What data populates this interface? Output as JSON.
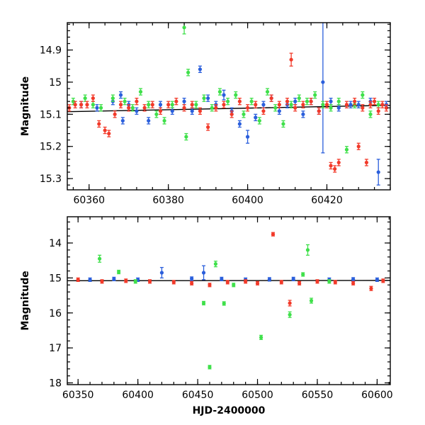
{
  "chart_data": [
    {
      "type": "scatter",
      "title": "",
      "xlabel": "",
      "ylabel": "Magnitude",
      "xlim": [
        60354.5,
        60436
      ],
      "ylim": [
        15.335,
        14.815
      ],
      "y_inverted": true,
      "x_ticks": [
        60360,
        60380,
        60400,
        60420
      ],
      "x_tick_labels": [
        "60360",
        "60380",
        "60400",
        "60420"
      ],
      "y_ticks": [
        14.9,
        15.0,
        15.1,
        15.2,
        15.3
      ],
      "y_tick_labels": [
        "14.9",
        "15",
        "15.1",
        "15.2",
        "15.3"
      ],
      "grid": false,
      "legend": "none",
      "trend_line": {
        "x": [
          60354.5,
          60436
        ],
        "y": [
          15.092,
          15.072
        ],
        "color": "#000000"
      },
      "series": [
        {
          "color": "#2b5fdc",
          "points": [
            [
              60358,
              15.07,
              0.01
            ],
            [
              60362,
              15.08,
              0.01
            ],
            [
              60366,
              15.06,
              0.01
            ],
            [
              60368,
              15.04,
              0.01
            ],
            [
              60368.5,
              15.12,
              0.01
            ],
            [
              60370,
              15.07,
              0.01
            ],
            [
              60372,
              15.09,
              0.01
            ],
            [
              60375,
              15.12,
              0.01
            ],
            [
              60378,
              15.07,
              0.01
            ],
            [
              60381,
              15.09,
              0.01
            ],
            [
              60384,
              15.06,
              0.01
            ],
            [
              60386,
              15.09,
              0.01
            ],
            [
              60388,
              14.96,
              0.01
            ],
            [
              60390,
              15.05,
              0.01
            ],
            [
              60392,
              15.07,
              0.01
            ],
            [
              60394,
              15.04,
              0.015
            ],
            [
              60396,
              15.09,
              0.01
            ],
            [
              60398,
              15.13,
              0.01
            ],
            [
              60400,
              15.17,
              0.02
            ],
            [
              60402,
              15.11,
              0.01
            ],
            [
              60404,
              15.07,
              0.01
            ],
            [
              60406,
              15.05,
              0.01
            ],
            [
              60408,
              15.09,
              0.01
            ],
            [
              60410,
              15.07,
              0.01
            ],
            [
              60412,
              15.06,
              0.01
            ],
            [
              60414,
              15.1,
              0.01
            ],
            [
              60416,
              15.06,
              0.01
            ],
            [
              60418,
              15.09,
              0.01
            ],
            [
              60419,
              15.0,
              0.22
            ],
            [
              60421,
              15.06,
              0.01
            ],
            [
              60423,
              15.08,
              0.01
            ],
            [
              60426,
              15.07,
              0.01
            ],
            [
              60428,
              15.07,
              0.01
            ],
            [
              60431,
              15.06,
              0.01
            ],
            [
              60433,
              15.28,
              0.04
            ],
            [
              60435,
              15.07,
              0.01
            ]
          ]
        },
        {
          "color": "#3fe04a",
          "points": [
            [
              60356,
              15.06,
              0.01
            ],
            [
              60359,
              15.05,
              0.01
            ],
            [
              60361,
              15.07,
              0.01
            ],
            [
              60363,
              15.08,
              0.01
            ],
            [
              60366,
              15.05,
              0.01
            ],
            [
              60369,
              15.06,
              0.01
            ],
            [
              60371,
              15.08,
              0.01
            ],
            [
              60373,
              15.03,
              0.01
            ],
            [
              60375,
              15.07,
              0.01
            ],
            [
              60377,
              15.1,
              0.01
            ],
            [
              60379,
              15.12,
              0.01
            ],
            [
              60381,
              15.07,
              0.01
            ],
            [
              60384,
              14.83,
              0.02
            ],
            [
              60384.5,
              15.17,
              0.01
            ],
            [
              60385,
              14.97,
              0.01
            ],
            [
              60387,
              15.07,
              0.01
            ],
            [
              60389,
              15.05,
              0.01
            ],
            [
              60391,
              15.08,
              0.01
            ],
            [
              60393,
              15.03,
              0.01
            ],
            [
              60395,
              15.06,
              0.01
            ],
            [
              60397,
              15.04,
              0.01
            ],
            [
              60399,
              15.1,
              0.01
            ],
            [
              60401,
              15.06,
              0.01
            ],
            [
              60403,
              15.12,
              0.01
            ],
            [
              60405,
              15.03,
              0.01
            ],
            [
              60407,
              15.08,
              0.01
            ],
            [
              60409,
              15.13,
              0.01
            ],
            [
              60411,
              15.07,
              0.01
            ],
            [
              60413,
              15.05,
              0.01
            ],
            [
              60415,
              15.06,
              0.01
            ],
            [
              60417,
              15.04,
              0.01
            ],
            [
              60419,
              15.07,
              0.01
            ],
            [
              60421,
              15.08,
              0.01
            ],
            [
              60423,
              15.06,
              0.01
            ],
            [
              60425,
              15.21,
              0.01
            ],
            [
              60427,
              15.07,
              0.01
            ],
            [
              60429,
              15.04,
              0.01
            ],
            [
              60431,
              15.1,
              0.01
            ],
            [
              60433,
              15.07,
              0.01
            ]
          ]
        },
        {
          "color": "#f23a2a",
          "points": [
            [
              60355,
              15.08,
              0.01
            ],
            [
              60356.5,
              15.07,
              0.01
            ],
            [
              60358,
              15.07,
              0.01
            ],
            [
              60359.5,
              15.07,
              0.01
            ],
            [
              60361,
              15.05,
              0.01
            ],
            [
              60362.5,
              15.13,
              0.01
            ],
            [
              60364,
              15.15,
              0.01
            ],
            [
              60365,
              15.16,
              0.01
            ],
            [
              60366.5,
              15.1,
              0.01
            ],
            [
              60368,
              15.07,
              0.01
            ],
            [
              60370,
              15.08,
              0.01
            ],
            [
              60372,
              15.06,
              0.01
            ],
            [
              60374,
              15.08,
              0.01
            ],
            [
              60376,
              15.07,
              0.01
            ],
            [
              60378,
              15.09,
              0.01
            ],
            [
              60380,
              15.07,
              0.01
            ],
            [
              60382,
              15.06,
              0.01
            ],
            [
              60384,
              15.08,
              0.01
            ],
            [
              60386,
              15.07,
              0.01
            ],
            [
              60388,
              15.09,
              0.01
            ],
            [
              60390,
              15.14,
              0.01
            ],
            [
              60392,
              15.08,
              0.01
            ],
            [
              60394,
              15.07,
              0.01
            ],
            [
              60396,
              15.1,
              0.01
            ],
            [
              60398,
              15.06,
              0.01
            ],
            [
              60400,
              15.08,
              0.01
            ],
            [
              60402,
              15.07,
              0.01
            ],
            [
              60404,
              15.09,
              0.01
            ],
            [
              60406,
              15.05,
              0.01
            ],
            [
              60408,
              15.07,
              0.01
            ],
            [
              60410,
              15.06,
              0.01
            ],
            [
              60411,
              14.93,
              0.02
            ],
            [
              60412,
              15.08,
              0.01
            ],
            [
              60414,
              15.07,
              0.01
            ],
            [
              60416,
              15.06,
              0.01
            ],
            [
              60418,
              15.09,
              0.01
            ],
            [
              60420,
              15.07,
              0.01
            ],
            [
              60421,
              15.26,
              0.01
            ],
            [
              60422,
              15.27,
              0.01
            ],
            [
              60423,
              15.25,
              0.01
            ],
            [
              60425,
              15.07,
              0.01
            ],
            [
              60427,
              15.06,
              0.01
            ],
            [
              60428,
              15.2,
              0.01
            ],
            [
              60429,
              15.08,
              0.01
            ],
            [
              60430,
              15.25,
              0.01
            ],
            [
              60431,
              15.07,
              0.01
            ],
            [
              60432,
              15.06,
              0.01
            ],
            [
              60433,
              15.09,
              0.01
            ],
            [
              60434,
              15.07,
              0.01
            ],
            [
              60435,
              15.08,
              0.01
            ]
          ]
        }
      ]
    },
    {
      "type": "scatter",
      "title": "",
      "xlabel": "HJD-2400000",
      "ylabel": "Magnitude",
      "xlim": [
        60341,
        60611
      ],
      "ylim": [
        18.05,
        13.25
      ],
      "y_inverted": true,
      "x_ticks": [
        60350,
        60400,
        60450,
        60500,
        60550,
        60600
      ],
      "x_tick_labels": [
        "60350",
        "60400",
        "60450",
        "60500",
        "60550",
        "60600"
      ],
      "y_ticks": [
        14,
        15,
        16,
        17,
        18
      ],
      "y_tick_labels": [
        "14",
        "15",
        "16",
        "17",
        "18"
      ],
      "grid": false,
      "legend": "none",
      "trend_line": {
        "x": [
          60341,
          60611
        ],
        "y": [
          15.08,
          15.07
        ],
        "color": "#000000"
      },
      "series": [
        {
          "color": "#2b5fdc",
          "points": [
            [
              60360,
              15.05,
              0.05
            ],
            [
              60380,
              15.03,
              0.05
            ],
            [
              60400,
              15.05,
              0.05
            ],
            [
              60420,
              14.85,
              0.15
            ],
            [
              60445,
              15.02,
              0.05
            ],
            [
              60455,
              14.85,
              0.2
            ],
            [
              60470,
              15.03,
              0.05
            ],
            [
              60490,
              15.05,
              0.05
            ],
            [
              60510,
              15.04,
              0.05
            ],
            [
              60530,
              15.03,
              0.05
            ],
            [
              60560,
              15.05,
              0.05
            ],
            [
              60580,
              15.04,
              0.05
            ],
            [
              60600,
              15.05,
              0.05
            ]
          ]
        },
        {
          "color": "#3fe04a",
          "points": [
            [
              60368,
              14.45,
              0.1
            ],
            [
              60384,
              14.83,
              0.05
            ],
            [
              60398,
              15.1,
              0.05
            ],
            [
              60455,
              15.72,
              0.05
            ],
            [
              60460,
              17.55,
              0.05
            ],
            [
              60465,
              14.6,
              0.08
            ],
            [
              60472,
              15.73,
              0.05
            ],
            [
              60480,
              15.2,
              0.05
            ],
            [
              60503,
              16.7,
              0.06
            ],
            [
              60527,
              16.05,
              0.08
            ],
            [
              60538,
              14.9,
              0.05
            ],
            [
              60542,
              14.2,
              0.15
            ],
            [
              60545,
              15.65,
              0.07
            ],
            [
              60560,
              15.1,
              0.05
            ]
          ]
        },
        {
          "color": "#f23a2a",
          "points": [
            [
              60350,
              15.05,
              0.05
            ],
            [
              60370,
              15.1,
              0.05
            ],
            [
              60390,
              15.08,
              0.05
            ],
            [
              60410,
              15.1,
              0.05
            ],
            [
              60430,
              15.12,
              0.05
            ],
            [
              60445,
              15.15,
              0.05
            ],
            [
              60460,
              15.2,
              0.05
            ],
            [
              60475,
              15.12,
              0.05
            ],
            [
              60490,
              15.1,
              0.05
            ],
            [
              60500,
              15.15,
              0.05
            ],
            [
              60513,
              13.75,
              0.05
            ],
            [
              60520,
              15.12,
              0.05
            ],
            [
              60527,
              15.72,
              0.08
            ],
            [
              60535,
              15.15,
              0.05
            ],
            [
              60550,
              15.1,
              0.05
            ],
            [
              60565,
              15.12,
              0.05
            ],
            [
              60580,
              15.15,
              0.05
            ],
            [
              60595,
              15.3,
              0.06
            ],
            [
              60605,
              15.08,
              0.05
            ]
          ]
        }
      ]
    }
  ]
}
